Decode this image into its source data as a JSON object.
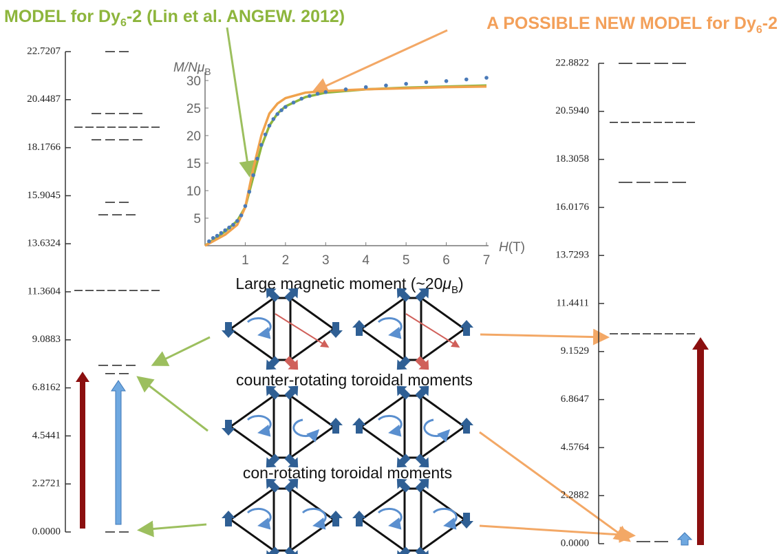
{
  "titles": {
    "left": [
      "MODEL for Dy",
      "6",
      "-2 (Lin et al. ANGEW. 2012)"
    ],
    "right": [
      "A POSSIBLE NEW MODEL for Dy",
      "6",
      "-2"
    ]
  },
  "captions": [
    [
      "Large magnetic moment (~20",
      "μ",
      "B",
      ")"
    ],
    [
      "counter-rotating toroidal moments"
    ],
    [
      "con-rotating toroidal moments"
    ]
  ],
  "chart_data": [
    {
      "type": "levels",
      "ylim": [
        0,
        22.7207
      ],
      "yticks": [
        {
          "value": 0,
          "label": "0.0000"
        },
        {
          "value": 2.2721,
          "label": "2.2721"
        },
        {
          "value": 4.5441,
          "label": "4.5441"
        },
        {
          "value": 6.8162,
          "label": "6.8162"
        },
        {
          "value": 9.0883,
          "label": "9.0883"
        },
        {
          "value": 11.3604,
          "label": "11.3604"
        },
        {
          "value": 13.6324,
          "label": "13.6324"
        },
        {
          "value": 15.9045,
          "label": "15.9045"
        },
        {
          "value": 18.1766,
          "label": "18.1766"
        },
        {
          "value": 20.4487,
          "label": "20.4487"
        },
        {
          "value": 22.7207,
          "label": "22.7207"
        }
      ],
      "values": [
        0,
        7.49,
        7.88,
        11.42,
        15.0,
        15.59,
        18.55,
        19.15,
        19.79,
        22.72
      ],
      "degeneracy": [
        2,
        2,
        3,
        8,
        3,
        2,
        4,
        8,
        4,
        2
      ]
    },
    {
      "type": "levels",
      "ylim": [
        0,
        22.8822
      ],
      "yticks": [
        {
          "value": 0,
          "label": "0.0000"
        },
        {
          "value": 2.2882,
          "label": "2.2882"
        },
        {
          "value": 4.5764,
          "label": "4.5764"
        },
        {
          "value": 6.8647,
          "label": "6.8647"
        },
        {
          "value": 9.1529,
          "label": "9.1529"
        },
        {
          "value": 11.4411,
          "label": "11.4411"
        },
        {
          "value": 13.7293,
          "label": "13.7293"
        },
        {
          "value": 16.0176,
          "label": "16.0176"
        },
        {
          "value": 18.3058,
          "label": "18.3058"
        },
        {
          "value": 20.594,
          "label": "20.5940"
        },
        {
          "value": 22.8822,
          "label": "22.8822"
        }
      ],
      "values": [
        0.1,
        10.0,
        17.21,
        20.07,
        22.88
      ],
      "degeneracy": [
        2,
        8,
        4,
        8,
        4
      ]
    },
    {
      "type": "line",
      "x_label": [
        "H",
        "(T)"
      ],
      "y_label": [
        "M/N",
        "μ",
        "B"
      ],
      "xlim": [
        0,
        7
      ],
      "ylim": [
        0,
        31.5
      ],
      "xticks": [
        1,
        2,
        3,
        4,
        5,
        6,
        7
      ],
      "yticks": [
        5,
        10,
        15,
        20,
        25,
        30
      ],
      "series": [
        {
          "style": "line",
          "color": "#8db53c",
          "x": [
            0,
            0.5,
            0.8,
            1.0,
            1.2,
            1.4,
            1.6,
            1.8,
            2.0,
            2.5,
            3,
            4,
            5,
            6,
            7
          ],
          "values": [
            0,
            2.6,
            4.5,
            7,
            12.5,
            18,
            21.8,
            24,
            25.3,
            27,
            27.8,
            28.4,
            28.7,
            28.9,
            29.1
          ]
        },
        {
          "style": "line",
          "color": "#f0a24c",
          "x": [
            0,
            0.5,
            0.8,
            1.0,
            1.2,
            1.4,
            1.6,
            1.8,
            2.0,
            2.5,
            3,
            4,
            5,
            6,
            7
          ],
          "values": [
            0,
            2,
            3.8,
            7,
            14,
            20,
            24,
            25.8,
            26.8,
            27.8,
            28.1,
            28.4,
            28.6,
            28.8,
            28.9
          ]
        },
        {
          "style": "dots",
          "color": "#4a7ab8",
          "x": [
            0.1,
            0.2,
            0.3,
            0.4,
            0.5,
            0.6,
            0.7,
            0.8,
            0.9,
            1.0,
            1.1,
            1.2,
            1.3,
            1.4,
            1.5,
            1.6,
            1.7,
            1.8,
            1.9,
            2.0,
            2.2,
            2.4,
            2.6,
            2.8,
            3.0,
            3.5,
            4.0,
            4.5,
            5.0,
            5.5,
            6.0,
            6.5,
            7.0
          ],
          "values": [
            0.8,
            1.4,
            1.8,
            2.3,
            2.8,
            3.3,
            3.8,
            4.5,
            5.5,
            7.2,
            9.8,
            12.8,
            15.8,
            18.3,
            20.2,
            21.8,
            23,
            23.9,
            24.6,
            25.2,
            26,
            26.7,
            27.2,
            27.6,
            27.9,
            28.4,
            28.8,
            29.1,
            29.4,
            29.7,
            29.9,
            30.2,
            30.5
          ]
        }
      ]
    }
  ]
}
